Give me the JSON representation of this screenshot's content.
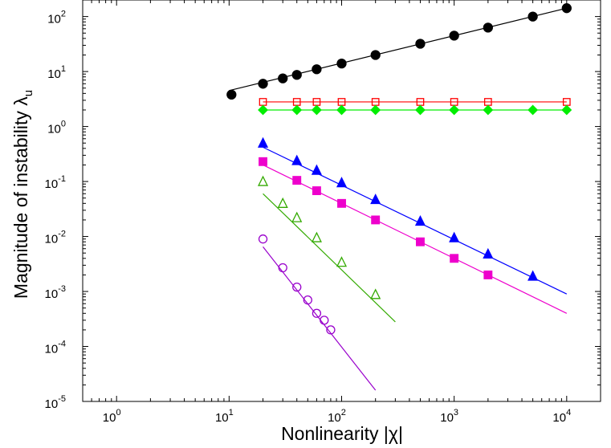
{
  "chart_data": {
    "type": "scatter",
    "xscale": "log",
    "yscale": "log",
    "xlim": [
      0.5,
      20000
    ],
    "ylim": [
      1e-05,
      200
    ],
    "xlabel": "Nonlinearity |χ|",
    "ylabel": "Magnitude of instability λ",
    "ylabel_subscript": "u",
    "x_ticks": [
      1,
      10,
      100,
      1000,
      10000
    ],
    "y_ticks": [
      1e-05,
      0.0001,
      0.001,
      0.01,
      0.1,
      1,
      10,
      100
    ],
    "tick_base": "10",
    "x_tick_exponents": [
      "0",
      "1",
      "2",
      "3",
      "4"
    ],
    "y_tick_exponents": [
      "-5",
      "-4",
      "-3",
      "-2",
      "-1",
      "0",
      "1",
      "2"
    ],
    "grid": false,
    "series": [
      {
        "color": "#000000",
        "marker": "circle-filled",
        "x": [
          10.5,
          20,
          30,
          40,
          60,
          100,
          200,
          500,
          1000,
          2000,
          5000,
          10000
        ],
        "y": [
          3.8,
          6,
          7.5,
          8.7,
          11,
          14,
          20,
          32,
          45,
          63,
          100,
          142
        ],
        "fit": [
          [
            10,
            4.5
          ],
          [
            10000,
            142
          ]
        ]
      },
      {
        "color": "#ff0000",
        "marker": "square-open",
        "x": [
          20,
          40,
          60,
          100,
          200,
          500,
          1000,
          2000,
          10000
        ],
        "y": [
          2.8,
          2.8,
          2.8,
          2.8,
          2.8,
          2.8,
          2.8,
          2.8,
          2.8
        ],
        "fit": [
          [
            20,
            2.8
          ],
          [
            10000,
            2.8
          ]
        ]
      },
      {
        "color": "#00ee00",
        "marker": "diamond-filled",
        "x": [
          20,
          40,
          60,
          100,
          200,
          500,
          1000,
          2000,
          5000,
          10000
        ],
        "y": [
          2.0,
          2.0,
          2.0,
          2.0,
          2.0,
          2.0,
          2.0,
          2.0,
          2.0,
          2.0
        ],
        "fit": [
          [
            20,
            2.0
          ],
          [
            10000,
            2.0
          ]
        ]
      },
      {
        "color": "#0000ff",
        "marker": "triangle-filled",
        "x": [
          20,
          40,
          60,
          100,
          200,
          500,
          1000,
          2000,
          5000
        ],
        "y": [
          0.5,
          0.24,
          0.16,
          0.095,
          0.047,
          0.019,
          0.0095,
          0.0048,
          0.0019
        ],
        "fit": [
          [
            20,
            0.42
          ],
          [
            10000,
            0.0009
          ]
        ]
      },
      {
        "color": "#ee00cc",
        "marker": "square-filled",
        "x": [
          20,
          40,
          60,
          100,
          200,
          500,
          1000,
          2000
        ],
        "y": [
          0.23,
          0.105,
          0.068,
          0.04,
          0.02,
          0.008,
          0.004,
          0.002
        ],
        "fit": [
          [
            20,
            0.2
          ],
          [
            10000,
            0.0004
          ]
        ]
      },
      {
        "color": "#33aa00",
        "marker": "triangle-open",
        "x": [
          20,
          30,
          40,
          60,
          100,
          200
        ],
        "y": [
          0.1,
          0.04,
          0.022,
          0.0095,
          0.0034,
          0.00088
        ],
        "fit": [
          [
            20,
            0.06
          ],
          [
            300,
            0.00028
          ]
        ]
      },
      {
        "color": "#9900cc",
        "marker": "circle-open",
        "x": [
          20,
          30,
          40,
          50,
          60,
          70,
          80
        ],
        "y": [
          0.009,
          0.0027,
          0.0012,
          0.0007,
          0.0004,
          0.0003,
          0.0002
        ],
        "fit": [
          [
            20,
            0.0065
          ],
          [
            200,
            1.6e-05
          ]
        ]
      }
    ]
  }
}
